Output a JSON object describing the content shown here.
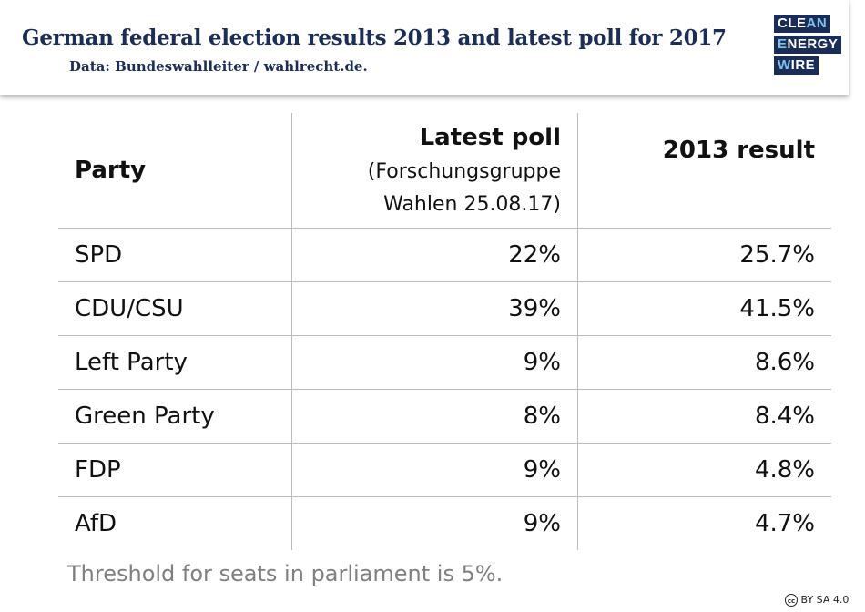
{
  "header": {
    "title": "German federal election results 2013 and latest poll for 2017",
    "subtitle": "Data: Bundeswahlleiter / wahlrecht.de."
  },
  "logo": {
    "line1a": "CLE",
    "line1b": "AN",
    "line2a": "E",
    "line2b": "NERGY",
    "line3a": "W",
    "line3b": "IRE"
  },
  "chart_data": {
    "type": "table",
    "columns": {
      "party": "Party",
      "poll": "Latest poll",
      "poll_source": "(Forschungsgruppe\nWahlen 25.08.17)",
      "result": "2013 result"
    },
    "rows": [
      {
        "party": "SPD",
        "poll": "22%",
        "result": "25.7%"
      },
      {
        "party": "CDU/CSU",
        "poll": "39%",
        "result": "41.5%"
      },
      {
        "party": "Left Party",
        "poll": "9%",
        "result": "8.6%"
      },
      {
        "party": "Green Party",
        "poll": "8%",
        "result": "8.4%"
      },
      {
        "party": "FDP",
        "poll": "9%",
        "result": "4.8%"
      },
      {
        "party": "AfD",
        "poll": "9%",
        "result": "4.7%"
      }
    ]
  },
  "footnote": "Threshold for seats in parliament is 5%.",
  "license": {
    "cc": "cc",
    "text": "BY SA 4.0"
  }
}
